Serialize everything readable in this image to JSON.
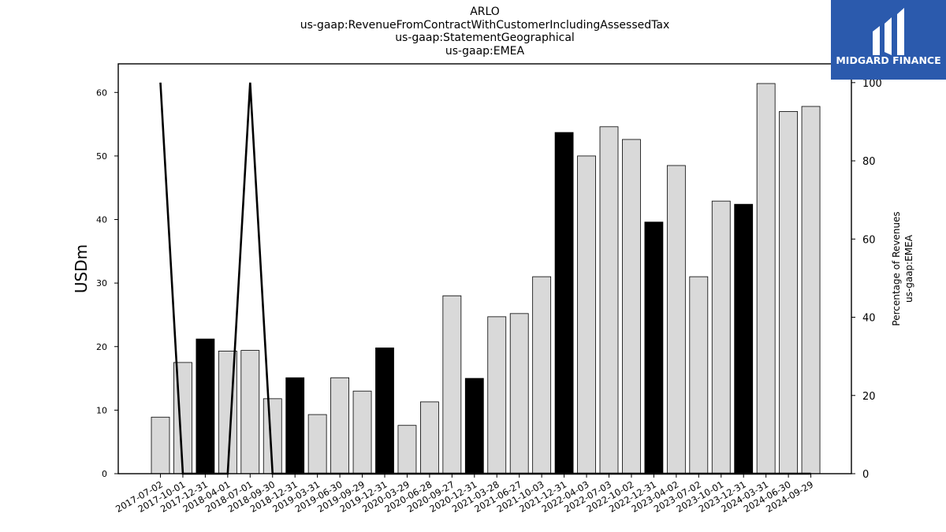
{
  "title_lines": [
    "ARLO",
    "us-gaap:RevenueFromContractWithCustomerIncludingAssessedTax",
    "us-gaap:StatementGeographical",
    "us-gaap:EMEA"
  ],
  "logo_text": "MIDGARD FINANCE",
  "colors": {
    "bar_light": "#d9d9d9",
    "bar_dark": "#000000",
    "line": "#000000",
    "logo_bg": "#2b5aad"
  },
  "chart_data": {
    "type": "bar",
    "categories": [
      "2017-07-02",
      "2017-10-01",
      "2017-12-31",
      "2018-04-01",
      "2018-07-01",
      "2018-09-30",
      "2018-12-31",
      "2019-03-31",
      "2019-06-30",
      "2019-09-29",
      "2019-12-31",
      "2020-03-29",
      "2020-06-28",
      "2020-09-27",
      "2020-12-31",
      "2021-03-28",
      "2021-06-27",
      "2021-10-03",
      "2021-12-31",
      "2022-04-03",
      "2022-07-03",
      "2022-10-02",
      "2022-12-31",
      "2023-04-02",
      "2023-07-02",
      "2023-10-01",
      "2023-12-31",
      "2024-03-31",
      "2024-06-30",
      "2024-09-29"
    ],
    "values": [
      8.9,
      17.5,
      21.2,
      19.3,
      19.4,
      11.8,
      15.1,
      9.3,
      15.1,
      13.0,
      19.8,
      7.6,
      11.3,
      28.0,
      15.0,
      24.7,
      25.2,
      31.0,
      53.7,
      50.0,
      54.6,
      52.6,
      39.6,
      48.5,
      31.0,
      42.9,
      42.4,
      61.4,
      57.0,
      57.8
    ],
    "highlight": [
      false,
      false,
      true,
      false,
      false,
      false,
      true,
      false,
      false,
      false,
      true,
      false,
      false,
      false,
      true,
      false,
      false,
      false,
      true,
      false,
      false,
      false,
      true,
      false,
      false,
      false,
      true,
      false,
      false,
      false
    ],
    "ylabel": "USDm",
    "ylim": [
      0,
      64.5
    ],
    "yticks": [
      0,
      10,
      20,
      30,
      40,
      50,
      60
    ],
    "secondary": {
      "ylabel_lines": [
        "Percentage of Revenues",
        "us-gaap:EMEA"
      ],
      "values": [
        100,
        0,
        0,
        0,
        100,
        0,
        0,
        0,
        0,
        0,
        0,
        0,
        0,
        0,
        0,
        0,
        0,
        0,
        0,
        0,
        0,
        0,
        0,
        0,
        0,
        0,
        0,
        0,
        0,
        0
      ],
      "ylim": [
        0,
        104.8
      ],
      "yticks": [
        0,
        20,
        40,
        60,
        80,
        100
      ]
    }
  }
}
